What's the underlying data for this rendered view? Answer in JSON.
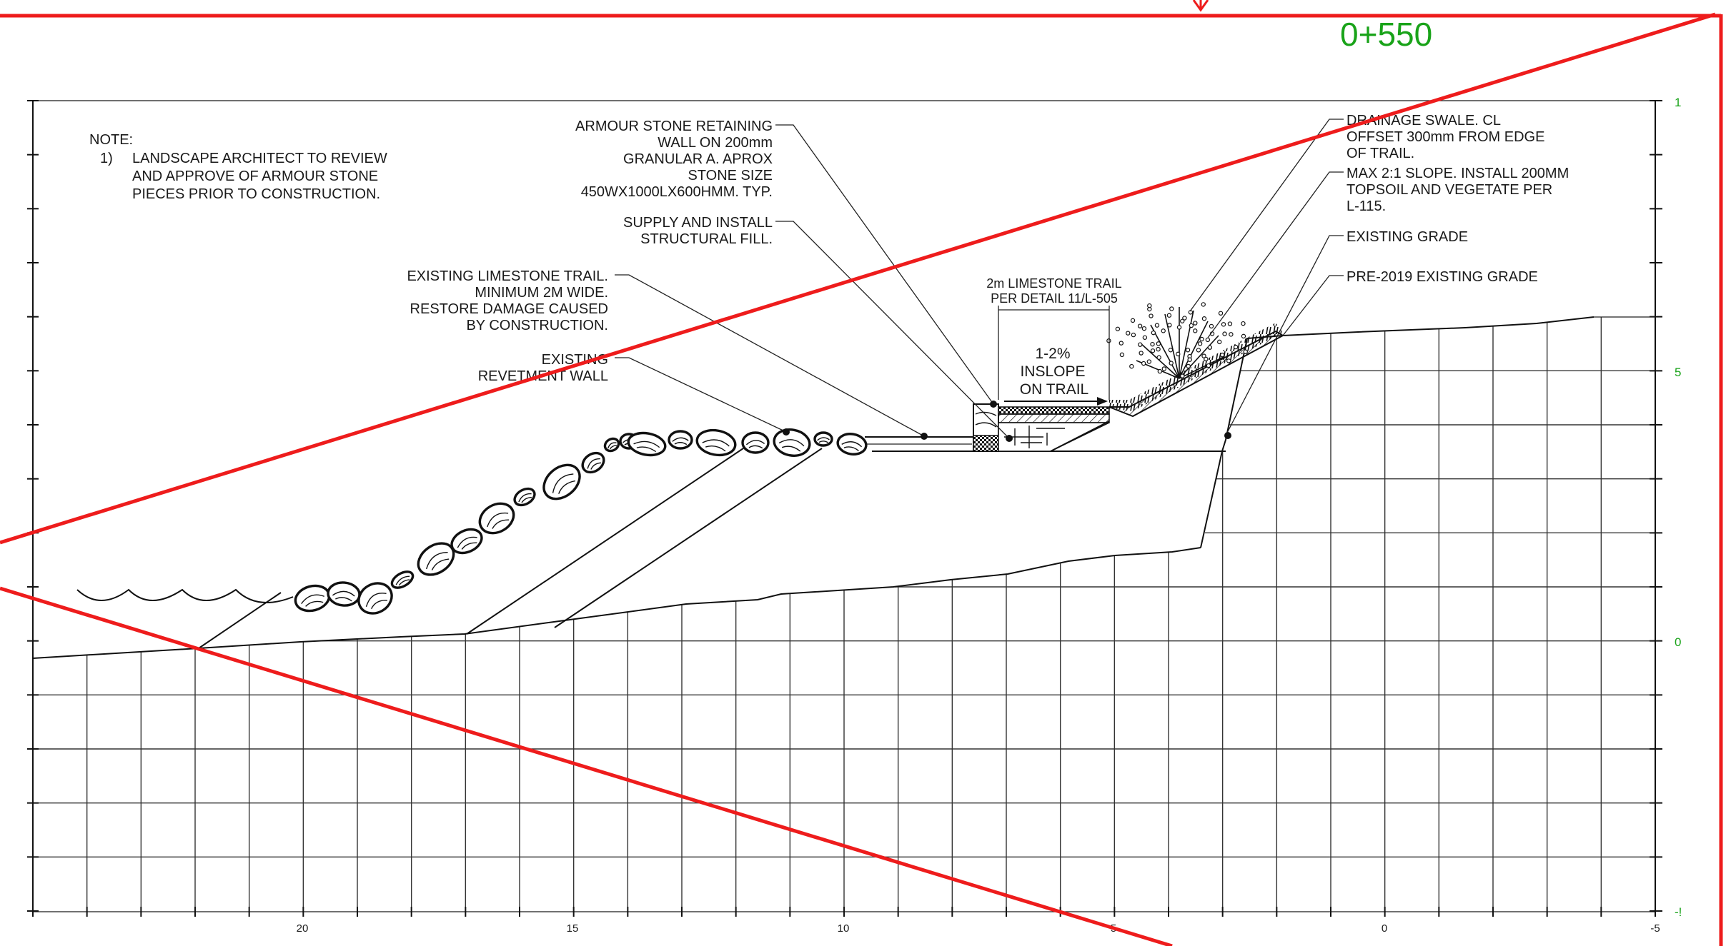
{
  "station_label": "0+550",
  "colors": {
    "markup_red": "#ee1c1c",
    "station_green": "#19a319",
    "line_black": "#111111"
  },
  "note": {
    "heading": "NOTE:",
    "number": "1)",
    "lines": [
      "LANDSCAPE ARCHITECT TO REVIEW",
      "AND APPROVE OF ARMOUR STONE",
      "PIECES PRIOR TO CONSTRUCTION."
    ]
  },
  "callouts": {
    "armour_stone": [
      "ARMOUR STONE RETAINING",
      "WALL ON 200mm",
      "GRANULAR A. APROX",
      "STONE SIZE",
      "450WX1000LX600HMM. TYP."
    ],
    "structural_fill": [
      "SUPPLY AND INSTALL",
      "STRUCTURAL FILL."
    ],
    "limestone_trail": [
      "EXISTING LIMESTONE TRAIL.",
      "MINIMUM 2M WIDE.",
      "RESTORE DAMAGE CAUSED",
      "BY CONSTRUCTION."
    ],
    "revetment_wall": [
      "EXISTING",
      "REVETMENT WALL"
    ],
    "trail_detail": [
      "2m LIMESTONE TRAIL",
      "PER DETAIL 11/L-505"
    ],
    "inslope": [
      "1-2%",
      "INSLOPE",
      "ON TRAIL"
    ],
    "drainage_swale": [
      "DRAINAGE SWALE. CL",
      "OFFSET 300mm FROM EDGE",
      "OF TRAIL."
    ],
    "max_slope": [
      "MAX 2:1 SLOPE. INSTALL 200MM",
      "TOPSOIL AND VEGETATE PER",
      "L-115."
    ],
    "existing_grade": "EXISTING GRADE",
    "pre2019_grade": "PRE-2019 EXISTING GRADE"
  },
  "axis": {
    "x_ticks": [
      "20",
      "15",
      "10",
      "5",
      "0",
      "-5"
    ],
    "y_ticks": [
      "1",
      "5",
      "0",
      "-!"
    ]
  }
}
